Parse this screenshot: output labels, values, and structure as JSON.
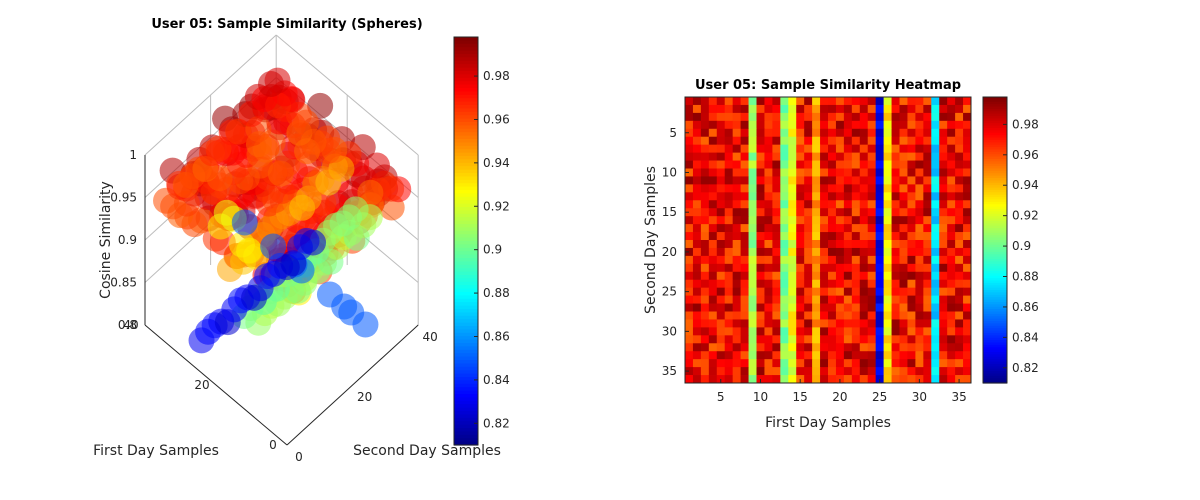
{
  "chart_data": [
    {
      "type": "scatter3d",
      "title": "User 05: Sample Similarity (Spheres)",
      "xlabel": "First Day Samples",
      "ylabel": "Second Day Samples",
      "zlabel": "Cosine Similarity",
      "xlim": [
        0,
        40
      ],
      "ylim": [
        0,
        40
      ],
      "zlim": [
        0.8,
        1
      ],
      "x_ticks": [
        "0",
        "20",
        "40"
      ],
      "y_ticks": [
        "0",
        "20",
        "40"
      ],
      "z_ticks": [
        "0.8",
        "0.85",
        "0.9",
        "0.95",
        "1"
      ],
      "colormap": "jet",
      "clim": [
        0.81,
        0.998
      ],
      "colorbar_ticks": [
        "0.82",
        "0.84",
        "0.86",
        "0.88",
        "0.9",
        "0.92",
        "0.94",
        "0.96",
        "0.98"
      ],
      "colorbar_tick_values": [
        0.82,
        0.84,
        0.86,
        0.88,
        0.9,
        0.92,
        0.94,
        0.96,
        0.98
      ],
      "grid": true
    },
    {
      "type": "heatmap",
      "title": "User 05: Sample Similarity Heatmap",
      "xlabel": "First Day Samples",
      "ylabel": "Second Day Samples",
      "x_ticks": [
        "5",
        "10",
        "15",
        "20",
        "25",
        "30",
        "35"
      ],
      "y_ticks": [
        "5",
        "10",
        "15",
        "20",
        "25",
        "30",
        "35"
      ],
      "tick_values": [
        5,
        10,
        15,
        20,
        25,
        30,
        35
      ],
      "n": 36,
      "colormap": "jet",
      "clim": [
        0.81,
        0.998
      ],
      "colorbar_ticks": [
        "0.82",
        "0.84",
        "0.86",
        "0.88",
        "0.9",
        "0.92",
        "0.94",
        "0.96",
        "0.98"
      ],
      "colorbar_tick_values": [
        0.82,
        0.84,
        0.86,
        0.88,
        0.9,
        0.92,
        0.94,
        0.96,
        0.98
      ],
      "low_columns": [
        {
          "col": 9,
          "value": 0.91
        },
        {
          "col": 13,
          "value": 0.905
        },
        {
          "col": 14,
          "value": 0.925
        },
        {
          "col": 17,
          "value": 0.945
        },
        {
          "col": 25,
          "value": 0.83
        },
        {
          "col": 26,
          "value": 0.93
        },
        {
          "col": 32,
          "value": 0.875
        }
      ],
      "base_range": [
        0.955,
        0.995
      ]
    }
  ]
}
